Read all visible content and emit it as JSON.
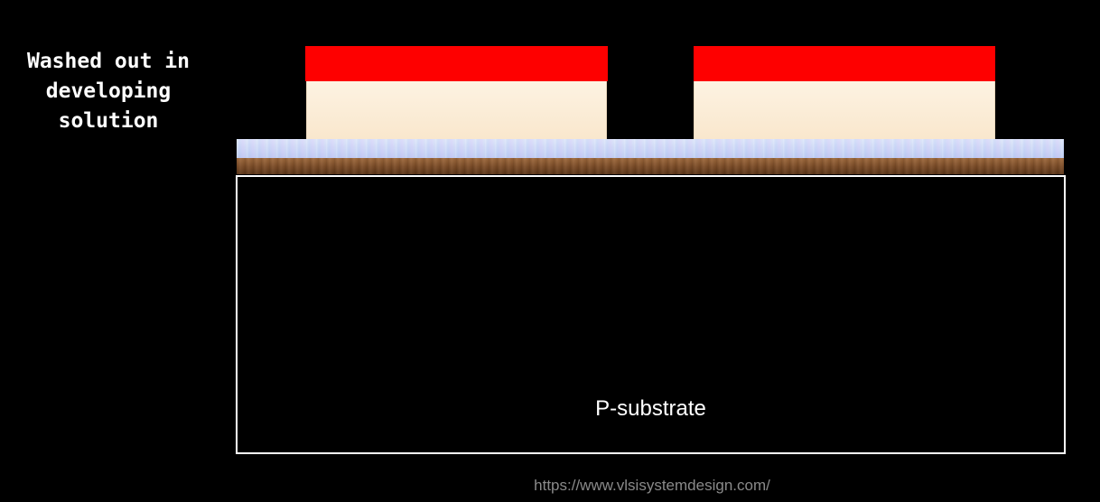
{
  "caption": {
    "lines": [
      "Washed out in",
      "developing",
      "solution"
    ]
  },
  "layers": {
    "substrate_label": "P-substrate"
  },
  "colors": {
    "background": "#000000",
    "photoresist": "#fe0000",
    "nitride": "#f9e7cd",
    "oxide": "#c4d2f2",
    "polysilicon": "#7a4a25",
    "substrate_outline": "#ffffff"
  },
  "footer": {
    "url": "https://www.vlsisystemdesign.com/"
  }
}
